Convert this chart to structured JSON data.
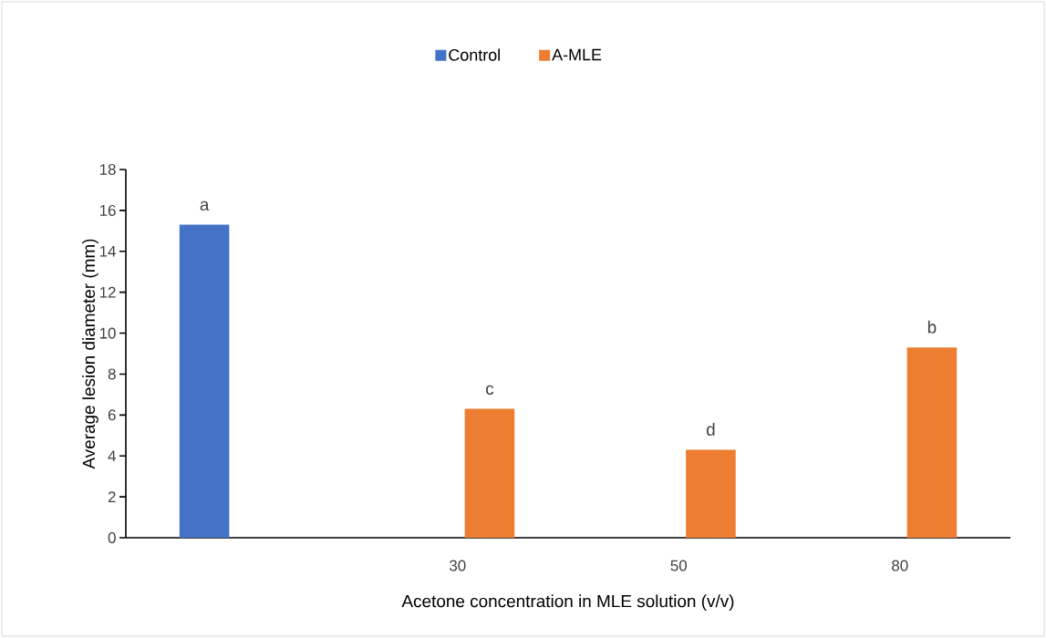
{
  "chart_data": {
    "type": "bar",
    "xlabel": "Acetone concentration in MLE solution (v/v)",
    "ylabel": "Average lesion diameter (mm)",
    "categories": [
      null,
      "30",
      "50",
      "80"
    ],
    "series": [
      {
        "name": "Control",
        "color": "#4472c4",
        "values": [
          15.3,
          null,
          null,
          null
        ]
      },
      {
        "name": "A-MLE",
        "color": "#ed7d31",
        "values": [
          null,
          6.3,
          4.3,
          9.3
        ]
      }
    ],
    "ylim": [
      0,
      18
    ],
    "yticks": [
      0,
      2,
      4,
      6,
      8,
      10,
      12,
      14,
      16,
      18
    ],
    "grid": false,
    "legend": "top",
    "annotations": [
      "a",
      "c",
      "d",
      "b"
    ]
  }
}
